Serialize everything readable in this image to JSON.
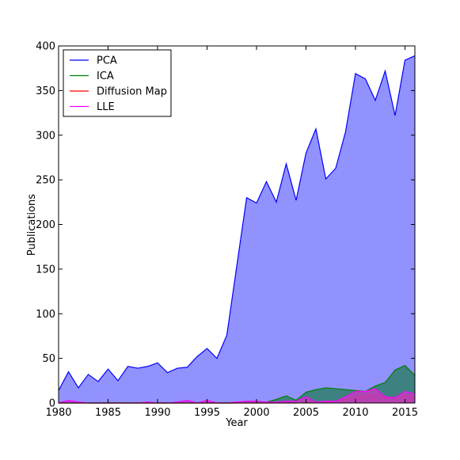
{
  "chart_data": {
    "type": "area",
    "title": "",
    "xlabel": "Year",
    "ylabel": "Publications",
    "xlim": [
      1980,
      2016
    ],
    "ylim": [
      0,
      400
    ],
    "xticks": [
      1980,
      1985,
      1990,
      1995,
      2000,
      2005,
      2010,
      2015
    ],
    "yticks": [
      0,
      50,
      100,
      150,
      200,
      250,
      300,
      350,
      400
    ],
    "grid": false,
    "legend_position": "top-left",
    "x": [
      1980,
      1981,
      1982,
      1983,
      1984,
      1985,
      1986,
      1987,
      1988,
      1989,
      1990,
      1991,
      1992,
      1993,
      1994,
      1995,
      1996,
      1997,
      1998,
      1999,
      2000,
      2001,
      2002,
      2003,
      2004,
      2005,
      2006,
      2007,
      2008,
      2009,
      2010,
      2011,
      2012,
      2013,
      2014,
      2015,
      2016
    ],
    "series": [
      {
        "name": "PCA",
        "line_color": "#0000ff",
        "fill_color": "#7f7fff",
        "values": [
          14,
          35,
          17,
          32,
          24,
          38,
          25,
          41,
          39,
          41,
          45,
          34,
          39,
          40,
          52,
          61,
          50,
          76,
          153,
          230,
          224,
          248,
          225,
          268,
          227,
          280,
          307,
          251,
          263,
          304,
          369,
          363,
          339,
          372,
          322,
          384,
          389
        ]
      },
      {
        "name": "ICA",
        "line_color": "#008000",
        "fill_color": "#2e7f6b",
        "values": [
          0,
          0,
          0,
          0,
          0,
          0,
          0,
          0,
          0,
          0,
          0,
          0,
          0,
          0,
          0,
          0,
          0,
          0,
          0,
          1,
          1,
          1,
          4,
          8,
          3,
          12,
          15,
          17,
          16,
          15,
          14,
          13,
          19,
          23,
          37,
          42,
          31
        ]
      },
      {
        "name": "Diffusion Map",
        "line_color": "#ff0000",
        "fill_color": "#a33c5f",
        "values": [
          0,
          0,
          0,
          0,
          0,
          0,
          0,
          0,
          0,
          0,
          0,
          0,
          0,
          0,
          0,
          0,
          0,
          0,
          0,
          0,
          0,
          0,
          0,
          0,
          0,
          1,
          1,
          1,
          2,
          4,
          6,
          8,
          9,
          6,
          5,
          8,
          6
        ]
      },
      {
        "name": "LLE",
        "line_color": "#ff00ff",
        "fill_color": "#c040c0",
        "values": [
          0,
          3,
          1,
          0,
          0,
          0,
          0,
          0,
          0,
          1,
          0,
          0,
          1,
          3,
          0,
          3,
          0,
          0,
          1,
          2,
          2,
          1,
          1,
          2,
          2,
          7,
          1,
          2,
          2,
          7,
          13,
          13,
          16,
          7,
          6,
          13,
          10
        ]
      }
    ]
  }
}
